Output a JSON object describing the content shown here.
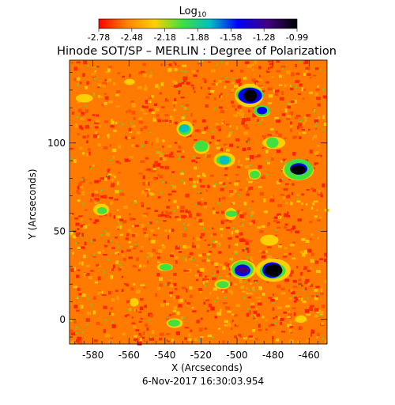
{
  "chart_data": {
    "type": "heatmap",
    "title": "Hinode SOT/SP – MERLIN : Degree of Polarization",
    "xlabel": "X (Arcseconds)",
    "ylabel": "Y (Arcseconds)",
    "xlim": [
      -593,
      -450
    ],
    "ylim": [
      -14,
      147
    ],
    "x_ticks": [
      -580,
      -560,
      -540,
      -520,
      -500,
      -480,
      -460
    ],
    "x_tick_labels": [
      "-580",
      "-560",
      "-540",
      "-520",
      "-500",
      "-480",
      "-460"
    ],
    "y_ticks": [
      0,
      50,
      100
    ],
    "y_tick_labels": [
      "0",
      "50",
      "100"
    ],
    "date_label": "6-Nov-2017 16:30:03.954",
    "colorbar": {
      "label": "Log",
      "label_subscript": "10",
      "min": -2.78,
      "max": -0.99,
      "tick_labels": [
        "-2.78",
        "-2.48",
        "-2.18",
        "-1.88",
        "-1.58",
        "-1.28",
        "-0.99"
      ],
      "colors": [
        "#ff0000",
        "#ff8000",
        "#ffd000",
        "#40e040",
        "#00c0c0",
        "#0000ff",
        "#400080",
        "#000000"
      ]
    },
    "background_level": -2.6,
    "features": [
      {
        "x": -493,
        "y": 127,
        "level": -1.0
      },
      {
        "x": -486,
        "y": 118,
        "level": -1.6
      },
      {
        "x": -529,
        "y": 108,
        "level": -1.7
      },
      {
        "x": -520,
        "y": 98,
        "level": -1.9
      },
      {
        "x": -507,
        "y": 90,
        "level": -1.8
      },
      {
        "x": -480,
        "y": 100,
        "level": -1.9
      },
      {
        "x": -466,
        "y": 85,
        "level": -1.2
      },
      {
        "x": -490,
        "y": 82,
        "level": -2.1
      },
      {
        "x": -503,
        "y": 60,
        "level": -2.1
      },
      {
        "x": -482,
        "y": 45,
        "level": -2.2
      },
      {
        "x": -480,
        "y": 28,
        "level": -1.1
      },
      {
        "x": -497,
        "y": 28,
        "level": -1.3
      },
      {
        "x": -508,
        "y": 20,
        "level": -2.0
      },
      {
        "x": -540,
        "y": 30,
        "level": -2.1
      },
      {
        "x": -575,
        "y": 62,
        "level": -2.1
      },
      {
        "x": -585,
        "y": 125,
        "level": -2.2
      },
      {
        "x": -535,
        "y": -2,
        "level": -2.0
      },
      {
        "x": -557,
        "y": 10,
        "level": -2.3
      },
      {
        "x": -465,
        "y": 0,
        "level": -2.3
      },
      {
        "x": -560,
        "y": 135,
        "level": -2.3
      },
      {
        "x": -545,
        "y": 75,
        "level": -2.4
      }
    ]
  }
}
